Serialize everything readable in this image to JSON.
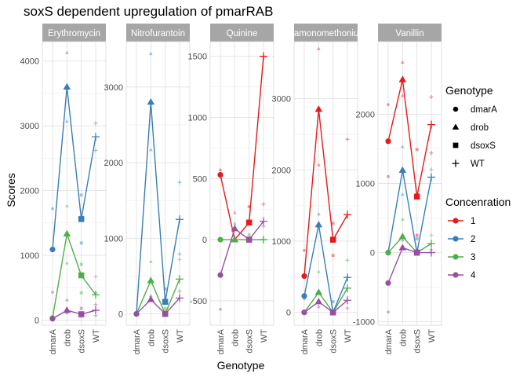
{
  "chart_data": {
    "type": "line",
    "title": "soxS dependent upregulation of pmarRAB",
    "xlabel": "Genotype",
    "ylabel": "Scores",
    "categories": [
      "dmarA",
      "drob",
      "dsoxS",
      "WT"
    ],
    "legend_shape": {
      "title": "Genotype",
      "entries": [
        {
          "label": "dmarA",
          "shape": "circle"
        },
        {
          "label": "drob",
          "shape": "triangle"
        },
        {
          "label": "dsoxS",
          "shape": "square"
        },
        {
          "label": "WT",
          "shape": "plus"
        }
      ]
    },
    "legend_color": {
      "title": "Concenration",
      "entries": [
        {
          "label": "1",
          "color": "#e41a1c"
        },
        {
          "label": "2",
          "color": "#377eb8"
        },
        {
          "label": "3",
          "color": "#4daf4a"
        },
        {
          "label": "4",
          "color": "#984ea3"
        }
      ]
    },
    "legend_placement": "right",
    "grid": true,
    "panels": [
      {
        "title": "Erythromycin",
        "ylim": [
          -80,
          4300
        ],
        "yticks": [
          0,
          1000,
          2000,
          3000,
          4000
        ],
        "series": [
          {
            "concentration": "2",
            "values": [
              1090,
              3600,
              1560,
              2830
            ]
          },
          {
            "concentration": "3",
            "values": [
              30,
              1330,
              690,
              390
            ]
          },
          {
            "concentration": "4",
            "values": [
              20,
              150,
              90,
              150
            ]
          }
        ],
        "replicates": [
          [
            0,
            "2",
            1720
          ],
          [
            0,
            "4",
            430
          ],
          [
            0,
            "3",
            50
          ],
          [
            1,
            "2",
            4130
          ],
          [
            1,
            "2",
            3070
          ],
          [
            1,
            "3",
            1760
          ],
          [
            1,
            "3",
            880
          ],
          [
            1,
            "4",
            310
          ],
          [
            1,
            "4",
            110
          ],
          [
            2,
            "2",
            1930
          ],
          [
            2,
            "2",
            1190
          ],
          [
            2,
            "3",
            860
          ],
          [
            2,
            "3",
            420
          ],
          [
            2,
            "4",
            180
          ],
          [
            2,
            "4",
            60
          ],
          [
            3,
            "2",
            3040
          ],
          [
            3,
            "2",
            2620
          ],
          [
            3,
            "3",
            670
          ],
          [
            3,
            "3",
            420
          ],
          [
            3,
            "4",
            240
          ],
          [
            3,
            "4",
            70
          ]
        ]
      },
      {
        "title": "Nitrofurantoin",
        "ylim": [
          -150,
          3600
        ],
        "yticks": [
          0,
          1000,
          2000,
          3000
        ],
        "series": [
          {
            "concentration": "2",
            "values": [
              0,
              2800,
              160,
              1250
            ]
          },
          {
            "concentration": "3",
            "values": [
              0,
              440,
              0,
              460
            ]
          },
          {
            "concentration": "4",
            "values": [
              0,
              190,
              0,
              210
            ]
          }
        ],
        "replicates": [
          [
            1,
            "2",
            3440
          ],
          [
            1,
            "2",
            2170
          ],
          [
            1,
            "3",
            690
          ],
          [
            1,
            "4",
            240
          ],
          [
            2,
            "2",
            330
          ],
          [
            2,
            "3",
            70
          ],
          [
            3,
            "2",
            1740
          ],
          [
            3,
            "2",
            790
          ],
          [
            3,
            "3",
            720
          ],
          [
            3,
            "4",
            300
          ]
        ]
      },
      {
        "title": "Quinine",
        "ylim": [
          -700,
          1620
        ],
        "yticks": [
          -500,
          0,
          500,
          1000,
          1500
        ],
        "series": [
          {
            "concentration": "1",
            "values": [
              530,
              0,
              140,
              1500
            ]
          },
          {
            "concentration": "3",
            "values": [
              0,
              0,
              0,
              0
            ]
          },
          {
            "concentration": "4",
            "values": [
              -290,
              90,
              0,
              150
            ]
          }
        ],
        "replicates": [
          [
            0,
            "1",
            570
          ],
          [
            0,
            "4",
            -570
          ],
          [
            1,
            "4",
            220
          ],
          [
            1,
            "2",
            130
          ],
          [
            2,
            "1",
            270
          ],
          [
            2,
            "3",
            40
          ],
          [
            3,
            "1",
            290
          ],
          [
            3,
            "4",
            110
          ],
          [
            3,
            "3",
            0
          ]
        ]
      },
      {
        "title": "Diamonomethonium",
        "ylim": [
          -180,
          3800
        ],
        "yticks": [
          0,
          1000,
          2000,
          3000
        ],
        "series": [
          {
            "concentration": "1",
            "values": [
              510,
              2850,
              1020,
              1370
            ]
          },
          {
            "concentration": "2",
            "values": [
              230,
              1230,
              0,
              490
            ]
          },
          {
            "concentration": "3",
            "values": [
              0,
              280,
              0,
              340
            ]
          },
          {
            "concentration": "4",
            "values": [
              0,
              150,
              0,
              170
            ]
          }
        ],
        "replicates": [
          [
            0,
            "1",
            870
          ],
          [
            0,
            "2",
            190
          ],
          [
            1,
            "1",
            3700
          ],
          [
            1,
            "1",
            2070
          ],
          [
            1,
            "2",
            1380
          ],
          [
            1,
            "3",
            570
          ],
          [
            1,
            "4",
            80
          ],
          [
            2,
            "1",
            1250
          ],
          [
            2,
            "1",
            800
          ],
          [
            2,
            "2",
            150
          ],
          [
            3,
            "1",
            2430
          ],
          [
            3,
            "2",
            490
          ],
          [
            3,
            "3",
            730
          ],
          [
            3,
            "4",
            60
          ]
        ]
      },
      {
        "title": "Vanillin",
        "ylim": [
          -1050,
          3050
        ],
        "yticks": [
          -1000,
          0,
          1000,
          2000
        ],
        "series": [
          {
            "concentration": "1",
            "values": [
              1610,
              2500,
              810,
              1850
            ]
          },
          {
            "concentration": "2",
            "values": [
              0,
              1190,
              0,
              1090
            ]
          },
          {
            "concentration": "3",
            "values": [
              0,
              230,
              0,
              130
            ]
          },
          {
            "concentration": "4",
            "values": [
              -440,
              70,
              0,
              0
            ]
          }
        ],
        "replicates": [
          [
            0,
            "1",
            2140
          ],
          [
            0,
            "1",
            1100
          ],
          [
            0,
            "4",
            -860
          ],
          [
            1,
            "1",
            2750
          ],
          [
            1,
            "1",
            2270
          ],
          [
            1,
            "2",
            1530
          ],
          [
            1,
            "2",
            840
          ],
          [
            1,
            "3",
            480
          ],
          [
            1,
            "4",
            180
          ],
          [
            2,
            "1",
            1490
          ],
          [
            2,
            "1",
            250
          ],
          [
            2,
            "2",
            200
          ],
          [
            3,
            "1",
            2250
          ],
          [
            3,
            "1",
            1440
          ],
          [
            3,
            "2",
            1200
          ],
          [
            3,
            "3",
            250
          ],
          [
            3,
            "4",
            40
          ]
        ]
      }
    ]
  }
}
